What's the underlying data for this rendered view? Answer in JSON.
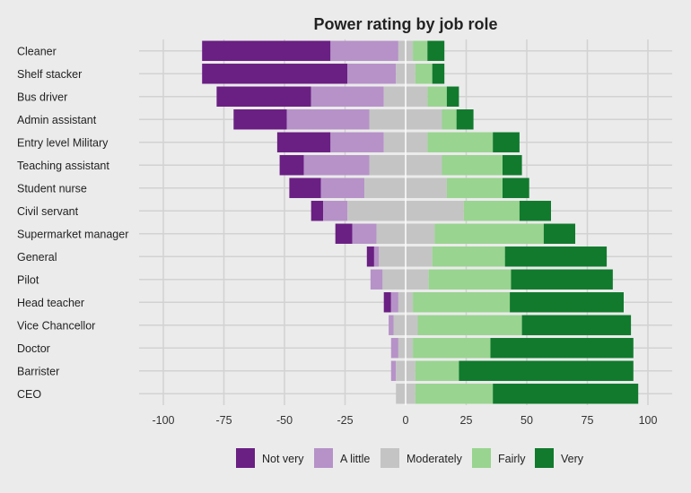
{
  "chart_data": {
    "type": "bar",
    "orientation": "horizontal",
    "stacking": "diverging",
    "title": "Power rating by job role",
    "xlabel": "",
    "ylabel": "",
    "xlim": [
      -110,
      110
    ],
    "xticks": [
      -100,
      -75,
      -50,
      -25,
      0,
      25,
      50,
      75,
      100
    ],
    "xtick_labels": [
      "-100",
      "-75",
      "-50",
      "-25",
      "0",
      "25",
      "50",
      "75",
      "100"
    ],
    "grid": true,
    "legend_position": "bottom",
    "categories": [
      "Cleaner",
      "Shelf stacker",
      "Bus driver",
      "Admin assistant",
      "Entry level Military",
      "Teaching assistant",
      "Student nurse",
      "Civil servant",
      "Supermarket manager",
      "General",
      "Pilot",
      "Head teacher",
      "Vice Chancellor",
      "Doctor",
      "Barrister",
      "CEO"
    ],
    "series": [
      {
        "name": "Not very",
        "color": "#6a1f83",
        "values": [
          53,
          60,
          39,
          22,
          22,
          10,
          13,
          5,
          7,
          3,
          0,
          3,
          0,
          0,
          0,
          0
        ]
      },
      {
        "name": "A little",
        "color": "#b692c8",
        "values": [
          28,
          20,
          30,
          34,
          22,
          27,
          18,
          10,
          10,
          2,
          5,
          3,
          2,
          3,
          2,
          0
        ]
      },
      {
        "name": "Moderately",
        "color": "#c4c4c4",
        "values": [
          6,
          8,
          18,
          30,
          18,
          30,
          34,
          48,
          24,
          22,
          19,
          6,
          10,
          6,
          8,
          8
        ]
      },
      {
        "name": "Fairly",
        "color": "#99d490",
        "values": [
          6,
          7,
          8,
          6,
          27,
          25,
          23,
          23,
          45,
          30,
          34,
          40,
          43,
          32,
          18,
          32
        ]
      },
      {
        "name": "Very",
        "color": "#117a2d",
        "values": [
          7,
          5,
          5,
          7,
          11,
          8,
          11,
          13,
          13,
          42,
          42,
          47,
          45,
          59,
          72,
          60
        ]
      }
    ]
  }
}
